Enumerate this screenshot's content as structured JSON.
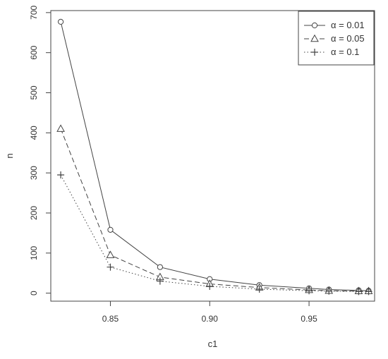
{
  "chart_data": {
    "type": "line",
    "title": "",
    "xlabel": "c1",
    "ylabel": "n",
    "xlim": [
      0.82,
      0.983
    ],
    "ylim": [
      -20,
      705
    ],
    "x_ticks": [
      0.85,
      0.9,
      0.95
    ],
    "x_tick_labels": [
      "0.85",
      "0.90",
      "0.95"
    ],
    "y_ticks": [
      0,
      100,
      200,
      300,
      400,
      500,
      600,
      700
    ],
    "y_tick_labels": [
      "0",
      "100",
      "200",
      "300",
      "400",
      "500",
      "600",
      "700"
    ],
    "grid": false,
    "legend_position": "top-right",
    "x": [
      0.825,
      0.85,
      0.875,
      0.9,
      0.925,
      0.95,
      0.96,
      0.975,
      0.98
    ],
    "series": [
      {
        "name": "α = 0.01",
        "marker": "circle",
        "line_style": "solid",
        "values": [
          677,
          158,
          65,
          35,
          20,
          12,
          9,
          7,
          6
        ]
      },
      {
        "name": "α = 0.05",
        "marker": "triangle",
        "line_style": "dashed",
        "values": [
          410,
          95,
          40,
          23,
          14,
          8,
          6,
          5,
          5
        ]
      },
      {
        "name": "α = 0.1",
        "marker": "plus",
        "line_style": "dotted",
        "values": [
          295,
          65,
          30,
          17,
          10,
          6,
          5,
          4,
          4
        ]
      }
    ]
  }
}
